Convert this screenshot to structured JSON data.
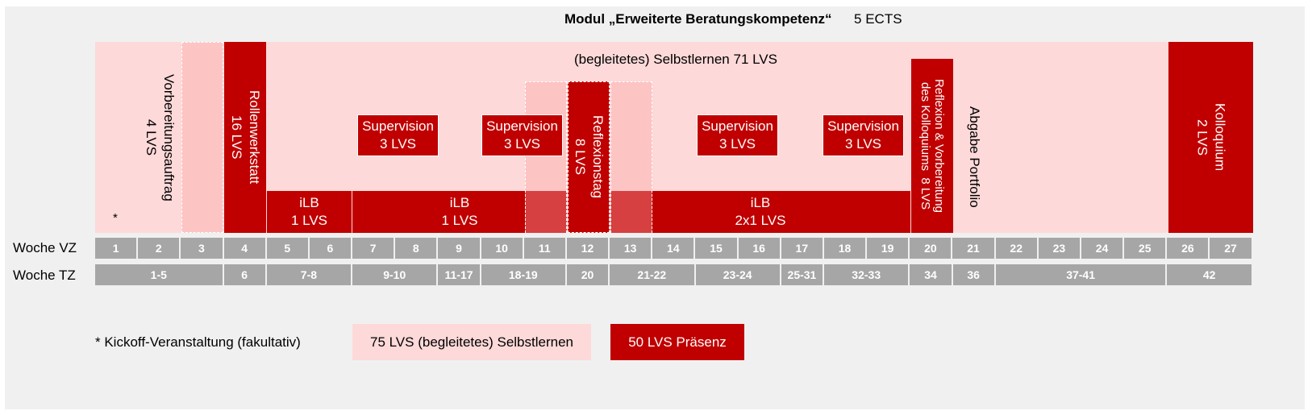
{
  "title": {
    "module": "Modul „Erweiterte Beratungskompetenz“",
    "ects": "5 ECTS"
  },
  "timeline": {
    "selbstlernen_label": "(begleitetes) Selbstlernen 71 LVS",
    "kickoff_marker": "*",
    "blocks": {
      "vorbereitung": "Vorbereitungsauftrag\n4 LVS",
      "rollenwerkstatt": "Rollenwerkstatt\n16 LVS",
      "reflexionstag": "Reflexionstag\n8 LVS",
      "reflexion_vorbereitung": "Reflexion & Vorbereitung\ndes Kolloquiums  8 LVS",
      "abgabe": "Abgabe Portfolio",
      "kolloquium": "Kolloquium\n2 LVS",
      "supervision_1": "Supervision\n3 LVS",
      "supervision_2": "Supervision\n3 LVS",
      "supervision_3": "Supervision\n3 LVS",
      "supervision_4": "Supervision\n3 LVS",
      "ilb_1": "iLB\n1 LVS",
      "ilb_2": "iLB\n1 LVS",
      "ilb_3": "iLB\n2x1 LVS"
    }
  },
  "weeks_vz": {
    "label": "Woche VZ",
    "cells": [
      "1",
      "2",
      "3",
      "4",
      "5",
      "6",
      "7",
      "8",
      "9",
      "10",
      "11",
      "12",
      "13",
      "14",
      "15",
      "16",
      "17",
      "18",
      "19",
      "20",
      "21",
      "22",
      "23",
      "24",
      "25",
      "26",
      "27"
    ]
  },
  "weeks_tz": {
    "label": "Woche TZ",
    "cells": [
      "1-5",
      "6",
      "7-8",
      "9-10",
      "11-17",
      "18-19",
      "20",
      "21-22",
      "23-24",
      "25-31",
      "32-33",
      "34",
      "36",
      "37-41",
      "42"
    ]
  },
  "legend": {
    "footnote": "* Kickoff-Veranstaltung (fakultativ)",
    "selbstlernen": "75 LVS (begleitetes) Selbstlernen",
    "praesenz": "50 LVS Präsenz"
  },
  "colors": {
    "praesenz": "#c00000",
    "selbstlernen": "#fdd9d9",
    "week_cells": "#a6a6a6",
    "background": "#f0f0f0"
  }
}
